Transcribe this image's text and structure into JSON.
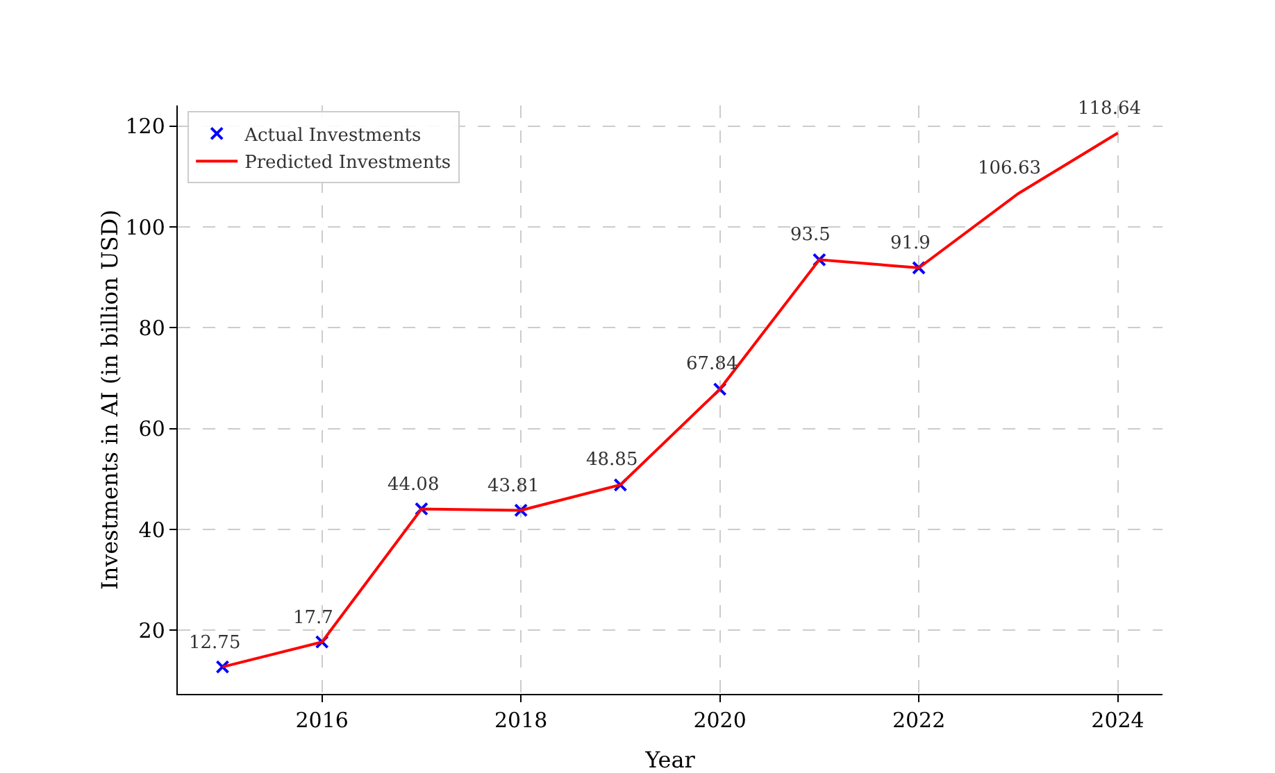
{
  "chart_data": {
    "type": "line",
    "xlabel": "Year",
    "ylabel": "Investments in AI (in billion USD)",
    "xlim": [
      2014.55,
      2024.45
    ],
    "xticks": [
      2016,
      2018,
      2020,
      2022,
      2024
    ],
    "ylim": [
      7.4,
      124.1
    ],
    "yticks": [
      20,
      40,
      60,
      80,
      100,
      120
    ],
    "grid": true,
    "legend": "top left",
    "series": [
      {
        "name": "Actual Investments",
        "type": "scatter",
        "marker": "cross",
        "color": "#0000ff",
        "x": [
          2015,
          2016,
          2017,
          2018,
          2019,
          2020,
          2021,
          2022
        ],
        "values": [
          12.75,
          17.7,
          44.08,
          43.81,
          48.85,
          67.84,
          93.5,
          91.9
        ]
      },
      {
        "name": "Predicted Investments",
        "marker": "none",
        "line_style": "solid",
        "data_labels": true,
        "color": "#ff0000",
        "x": [
          2015,
          2016,
          2017,
          2018,
          2019,
          2020,
          2021,
          2022,
          2023,
          2024
        ],
        "values": [
          12.75,
          17.7,
          44.08,
          43.81,
          48.85,
          67.84,
          93.5,
          91.9,
          106.63,
          118.64
        ]
      }
    ]
  }
}
